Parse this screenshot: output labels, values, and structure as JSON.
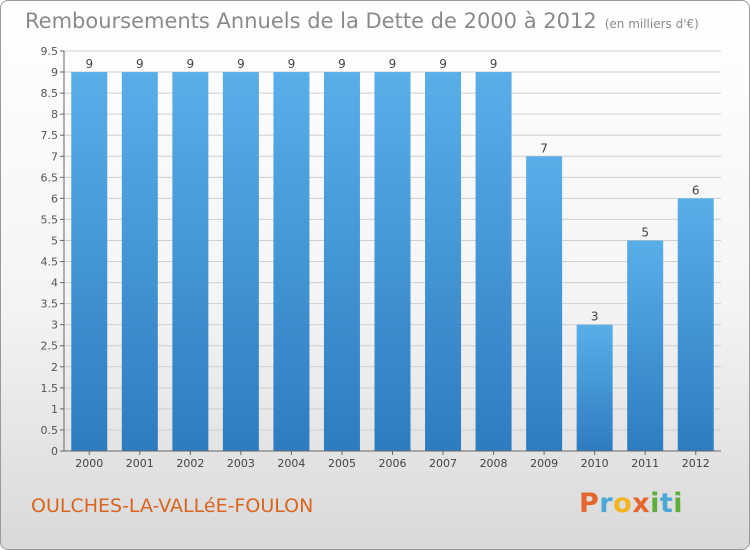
{
  "header": {
    "title": "Remboursements Annuels de la Dette de 2000 à 2012",
    "unit_note": "(en milliers d'€)"
  },
  "footer": {
    "commune": "OULCHES-LA-VALLéE-FOULON",
    "logo_text": "Proxiti"
  },
  "colors": {
    "bar_top": "#5aaee8",
    "bar_bottom": "#2e7cc0",
    "commune": "#d9651f"
  },
  "chart_data": {
    "type": "bar",
    "title": "Remboursements Annuels de la Dette de 2000 à 2012",
    "subtitle": "(en milliers d'€)",
    "categories": [
      "2000",
      "2001",
      "2002",
      "2003",
      "2004",
      "2005",
      "2006",
      "2007",
      "2008",
      "2009",
      "2010",
      "2011",
      "2012"
    ],
    "values": [
      9,
      9,
      9,
      9,
      9,
      9,
      9,
      9,
      9,
      7,
      3,
      5,
      6
    ],
    "ylim": [
      0,
      9.5
    ],
    "yticks": [
      "0",
      "0.5",
      "1",
      "1.5",
      "2",
      "2.5",
      "3",
      "3.5",
      "4",
      "4.5",
      "5",
      "5.5",
      "6",
      "6.5",
      "7",
      "7.5",
      "8",
      "8.5",
      "9",
      "9.5"
    ],
    "grid": true
  }
}
